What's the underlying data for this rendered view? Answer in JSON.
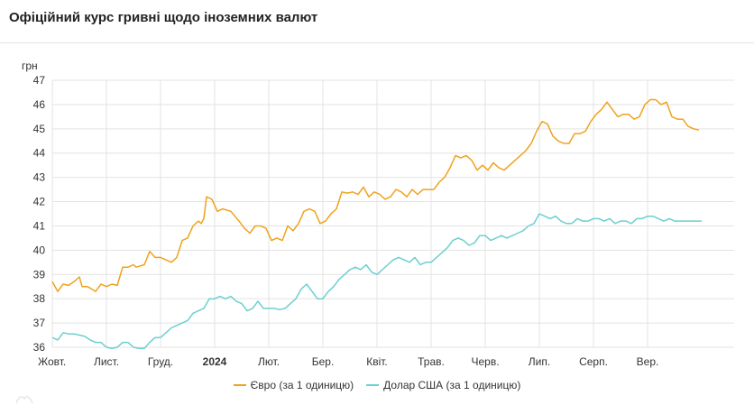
{
  "header": {
    "title": "Офіційний курс гривні щодо іноземних валют"
  },
  "chart_data": {
    "type": "line",
    "ylabel": "грн",
    "ylim": [
      36,
      47
    ],
    "y_ticks": [
      36,
      37,
      38,
      39,
      40,
      41,
      42,
      43,
      44,
      45,
      46,
      47
    ],
    "x_ticks": [
      {
        "label": "Жовт.",
        "bold": false
      },
      {
        "label": "Лист.",
        "bold": false
      },
      {
        "label": "Груд.",
        "bold": false
      },
      {
        "label": "2024",
        "bold": true
      },
      {
        "label": "Лют.",
        "bold": false
      },
      {
        "label": "Бер.",
        "bold": false
      },
      {
        "label": "Квіт.",
        "bold": false
      },
      {
        "label": "Трав.",
        "bold": false
      },
      {
        "label": "Черв.",
        "bold": false
      },
      {
        "label": "Лип.",
        "bold": false
      },
      {
        "label": "Серп.",
        "bold": false
      },
      {
        "label": "Вер.",
        "bold": false
      }
    ],
    "x_domain": [
      0,
      12.6
    ],
    "grid": true,
    "legend_position": "bottom",
    "series": [
      {
        "name": "Євро (за 1 одиницю)",
        "color": "#f0a21c",
        "points": [
          [
            0.0,
            38.7
          ],
          [
            0.1,
            38.3
          ],
          [
            0.2,
            38.6
          ],
          [
            0.3,
            38.55
          ],
          [
            0.4,
            38.7
          ],
          [
            0.5,
            38.9
          ],
          [
            0.55,
            38.5
          ],
          [
            0.65,
            38.5
          ],
          [
            0.8,
            38.3
          ],
          [
            0.9,
            38.6
          ],
          [
            1.0,
            38.5
          ],
          [
            1.1,
            38.6
          ],
          [
            1.2,
            38.55
          ],
          [
            1.3,
            39.3
          ],
          [
            1.4,
            39.3
          ],
          [
            1.5,
            39.4
          ],
          [
            1.55,
            39.3
          ],
          [
            1.7,
            39.4
          ],
          [
            1.8,
            39.95
          ],
          [
            1.9,
            39.7
          ],
          [
            2.0,
            39.7
          ],
          [
            2.1,
            39.6
          ],
          [
            2.2,
            39.5
          ],
          [
            2.3,
            39.7
          ],
          [
            2.4,
            40.4
          ],
          [
            2.5,
            40.5
          ],
          [
            2.6,
            41.0
          ],
          [
            2.7,
            41.2
          ],
          [
            2.75,
            41.1
          ],
          [
            2.8,
            41.3
          ],
          [
            2.85,
            42.2
          ],
          [
            2.95,
            42.1
          ],
          [
            3.05,
            41.6
          ],
          [
            3.15,
            41.7
          ],
          [
            3.3,
            41.6
          ],
          [
            3.45,
            41.2
          ],
          [
            3.55,
            40.9
          ],
          [
            3.65,
            40.7
          ],
          [
            3.75,
            41.0
          ],
          [
            3.85,
            41.0
          ],
          [
            3.95,
            40.9
          ],
          [
            4.05,
            40.4
          ],
          [
            4.15,
            40.5
          ],
          [
            4.25,
            40.4
          ],
          [
            4.35,
            41.0
          ],
          [
            4.45,
            40.8
          ],
          [
            4.55,
            41.1
          ],
          [
            4.65,
            41.6
          ],
          [
            4.75,
            41.7
          ],
          [
            4.85,
            41.6
          ],
          [
            4.95,
            41.1
          ],
          [
            5.05,
            41.2
          ],
          [
            5.15,
            41.5
          ],
          [
            5.25,
            41.7
          ],
          [
            5.35,
            42.4
          ],
          [
            5.45,
            42.35
          ],
          [
            5.55,
            42.4
          ],
          [
            5.65,
            42.3
          ],
          [
            5.75,
            42.6
          ],
          [
            5.85,
            42.2
          ],
          [
            5.95,
            42.4
          ],
          [
            6.05,
            42.3
          ],
          [
            6.15,
            42.1
          ],
          [
            6.25,
            42.2
          ],
          [
            6.35,
            42.5
          ],
          [
            6.45,
            42.4
          ],
          [
            6.55,
            42.2
          ],
          [
            6.65,
            42.5
          ],
          [
            6.75,
            42.3
          ],
          [
            6.85,
            42.5
          ],
          [
            6.95,
            42.5
          ],
          [
            7.05,
            42.5
          ],
          [
            7.15,
            42.8
          ],
          [
            7.25,
            43.0
          ],
          [
            7.35,
            43.4
          ],
          [
            7.45,
            43.9
          ],
          [
            7.55,
            43.8
          ],
          [
            7.65,
            43.9
          ],
          [
            7.75,
            43.7
          ],
          [
            7.85,
            43.3
          ],
          [
            7.95,
            43.5
          ],
          [
            8.05,
            43.3
          ],
          [
            8.15,
            43.6
          ],
          [
            8.25,
            43.4
          ],
          [
            8.35,
            43.3
          ],
          [
            8.45,
            43.5
          ],
          [
            8.55,
            43.7
          ],
          [
            8.65,
            43.9
          ],
          [
            8.75,
            44.1
          ],
          [
            8.85,
            44.4
          ],
          [
            8.95,
            44.9
          ],
          [
            9.05,
            45.3
          ],
          [
            9.15,
            45.2
          ],
          [
            9.25,
            44.7
          ],
          [
            9.35,
            44.5
          ],
          [
            9.45,
            44.4
          ],
          [
            9.55,
            44.4
          ],
          [
            9.65,
            44.8
          ],
          [
            9.75,
            44.8
          ],
          [
            9.85,
            44.9
          ],
          [
            9.95,
            45.3
          ],
          [
            10.05,
            45.6
          ],
          [
            10.15,
            45.8
          ],
          [
            10.25,
            46.1
          ],
          [
            10.35,
            45.8
          ],
          [
            10.45,
            45.5
          ],
          [
            10.55,
            45.6
          ],
          [
            10.65,
            45.6
          ],
          [
            10.75,
            45.4
          ],
          [
            10.85,
            45.5
          ],
          [
            10.95,
            46.0
          ],
          [
            11.05,
            46.2
          ],
          [
            11.15,
            46.2
          ],
          [
            11.25,
            46.0
          ],
          [
            11.35,
            46.1
          ],
          [
            11.45,
            45.5
          ],
          [
            11.55,
            45.4
          ],
          [
            11.65,
            45.4
          ],
          [
            11.75,
            45.1
          ],
          [
            11.85,
            45.0
          ],
          [
            11.95,
            44.95
          ]
        ]
      },
      {
        "name": "Долар США (за 1 одиницю)",
        "color": "#6ccfd0",
        "points": [
          [
            0.0,
            36.4
          ],
          [
            0.1,
            36.3
          ],
          [
            0.2,
            36.6
          ],
          [
            0.3,
            36.55
          ],
          [
            0.4,
            36.55
          ],
          [
            0.5,
            36.5
          ],
          [
            0.6,
            36.45
          ],
          [
            0.7,
            36.3
          ],
          [
            0.8,
            36.2
          ],
          [
            0.9,
            36.2
          ],
          [
            1.0,
            36.0
          ],
          [
            1.1,
            35.95
          ],
          [
            1.2,
            36.0
          ],
          [
            1.3,
            36.2
          ],
          [
            1.4,
            36.2
          ],
          [
            1.5,
            36.0
          ],
          [
            1.6,
            35.95
          ],
          [
            1.7,
            35.95
          ],
          [
            1.8,
            36.2
          ],
          [
            1.9,
            36.4
          ],
          [
            2.0,
            36.4
          ],
          [
            2.1,
            36.6
          ],
          [
            2.2,
            36.8
          ],
          [
            2.3,
            36.9
          ],
          [
            2.4,
            37.0
          ],
          [
            2.5,
            37.1
          ],
          [
            2.6,
            37.4
          ],
          [
            2.7,
            37.5
          ],
          [
            2.8,
            37.6
          ],
          [
            2.9,
            38.0
          ],
          [
            3.0,
            38.0
          ],
          [
            3.1,
            38.1
          ],
          [
            3.2,
            38.0
          ],
          [
            3.3,
            38.1
          ],
          [
            3.4,
            37.9
          ],
          [
            3.5,
            37.8
          ],
          [
            3.6,
            37.5
          ],
          [
            3.7,
            37.6
          ],
          [
            3.8,
            37.9
          ],
          [
            3.9,
            37.6
          ],
          [
            4.0,
            37.6
          ],
          [
            4.1,
            37.6
          ],
          [
            4.2,
            37.55
          ],
          [
            4.3,
            37.6
          ],
          [
            4.4,
            37.8
          ],
          [
            4.5,
            38.0
          ],
          [
            4.6,
            38.4
          ],
          [
            4.7,
            38.6
          ],
          [
            4.8,
            38.3
          ],
          [
            4.9,
            38.0
          ],
          [
            5.0,
            38.0
          ],
          [
            5.1,
            38.3
          ],
          [
            5.2,
            38.5
          ],
          [
            5.3,
            38.8
          ],
          [
            5.4,
            39.0
          ],
          [
            5.5,
            39.2
          ],
          [
            5.6,
            39.3
          ],
          [
            5.7,
            39.2
          ],
          [
            5.8,
            39.4
          ],
          [
            5.9,
            39.1
          ],
          [
            6.0,
            39.0
          ],
          [
            6.1,
            39.2
          ],
          [
            6.2,
            39.4
          ],
          [
            6.3,
            39.6
          ],
          [
            6.4,
            39.7
          ],
          [
            6.5,
            39.6
          ],
          [
            6.6,
            39.5
          ],
          [
            6.7,
            39.7
          ],
          [
            6.8,
            39.4
          ],
          [
            6.9,
            39.5
          ],
          [
            7.0,
            39.5
          ],
          [
            7.1,
            39.7
          ],
          [
            7.2,
            39.9
          ],
          [
            7.3,
            40.1
          ],
          [
            7.4,
            40.4
          ],
          [
            7.5,
            40.5
          ],
          [
            7.6,
            40.4
          ],
          [
            7.7,
            40.2
          ],
          [
            7.8,
            40.3
          ],
          [
            7.9,
            40.6
          ],
          [
            8.0,
            40.6
          ],
          [
            8.1,
            40.4
          ],
          [
            8.2,
            40.5
          ],
          [
            8.3,
            40.6
          ],
          [
            8.4,
            40.5
          ],
          [
            8.5,
            40.6
          ],
          [
            8.6,
            40.7
          ],
          [
            8.7,
            40.8
          ],
          [
            8.8,
            41.0
          ],
          [
            8.9,
            41.1
          ],
          [
            9.0,
            41.5
          ],
          [
            9.1,
            41.4
          ],
          [
            9.2,
            41.3
          ],
          [
            9.3,
            41.4
          ],
          [
            9.4,
            41.2
          ],
          [
            9.5,
            41.1
          ],
          [
            9.6,
            41.1
          ],
          [
            9.7,
            41.3
          ],
          [
            9.8,
            41.2
          ],
          [
            9.9,
            41.2
          ],
          [
            10.0,
            41.3
          ],
          [
            10.1,
            41.3
          ],
          [
            10.2,
            41.2
          ],
          [
            10.3,
            41.3
          ],
          [
            10.4,
            41.1
          ],
          [
            10.5,
            41.2
          ],
          [
            10.6,
            41.2
          ],
          [
            10.7,
            41.1
          ],
          [
            10.8,
            41.3
          ],
          [
            10.9,
            41.3
          ],
          [
            11.0,
            41.4
          ],
          [
            11.1,
            41.4
          ],
          [
            11.2,
            41.3
          ],
          [
            11.3,
            41.2
          ],
          [
            11.4,
            41.3
          ],
          [
            11.5,
            41.2
          ],
          [
            11.6,
            41.2
          ],
          [
            11.7,
            41.2
          ],
          [
            11.8,
            41.2
          ],
          [
            11.9,
            41.2
          ],
          [
            12.0,
            41.2
          ]
        ]
      }
    ]
  }
}
